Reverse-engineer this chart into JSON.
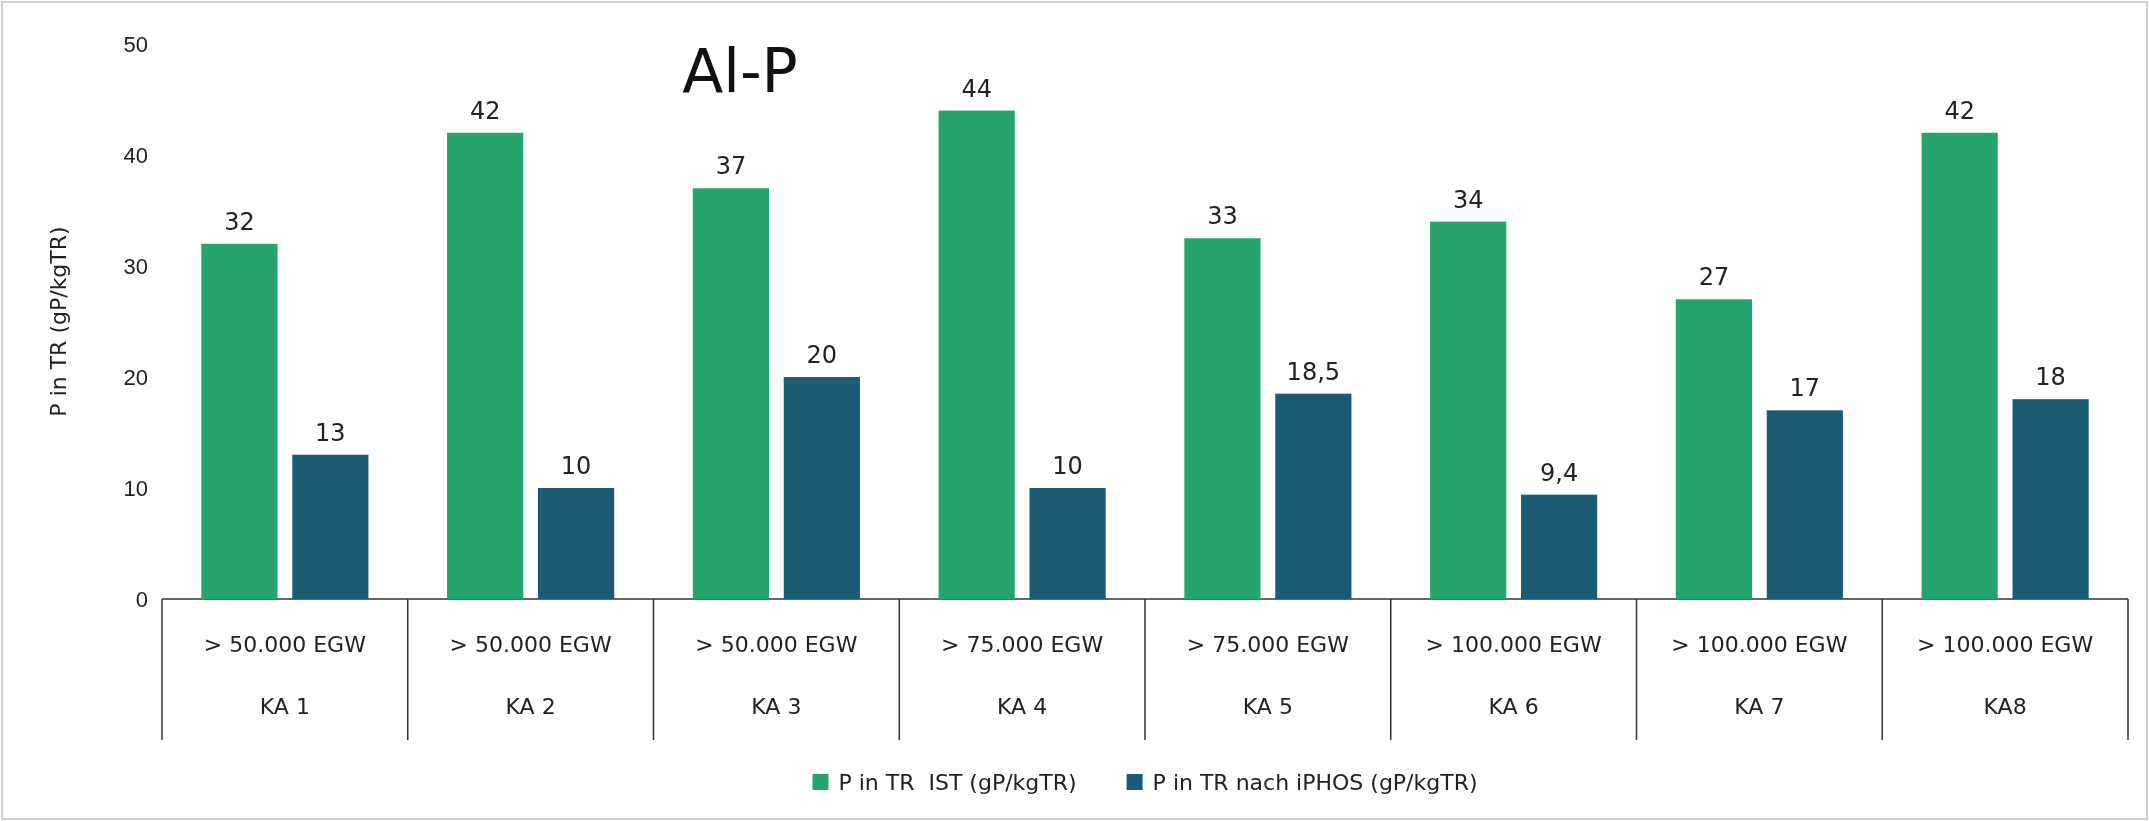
{
  "chart_data": {
    "type": "bar",
    "title": "Al-P",
    "ylabel": "P in TR (gP/kgTR)",
    "categories": [
      "> 50.000 EGW\nKA 1",
      "> 50.000 EGW\nKA 2",
      "> 50.000 EGW\nKA 3",
      "> 75.000 EGW\nKA 4",
      "> 75.000 EGW\nKA 5",
      "> 100.000 EGW\nKA 6",
      "> 100.000 EGW\nKA 7",
      "> 100.000 EGW\nKA8"
    ],
    "series": [
      {
        "name": "P in TR  IST (gP/kgTR)",
        "color": "#26a46e",
        "values": [
          32,
          42,
          37,
          44,
          32.5,
          34,
          27,
          42
        ],
        "value_labels": [
          "32",
          "42",
          "37",
          "44",
          "33",
          "34",
          "27",
          "42"
        ]
      },
      {
        "name": "P in TR nach iPHOS (gP/kgTR)",
        "color": "#1b5c74",
        "values": [
          13,
          10,
          20,
          10,
          18.5,
          9.4,
          17,
          18
        ],
        "value_labels": [
          "13",
          "10",
          "20",
          "10",
          "18,5",
          "9,4",
          "17",
          "18"
        ]
      }
    ],
    "ylim": [
      0,
      50
    ],
    "yticks": [
      0,
      10,
      20,
      30,
      40,
      50
    ],
    "grid": false,
    "legend": "bottom"
  }
}
